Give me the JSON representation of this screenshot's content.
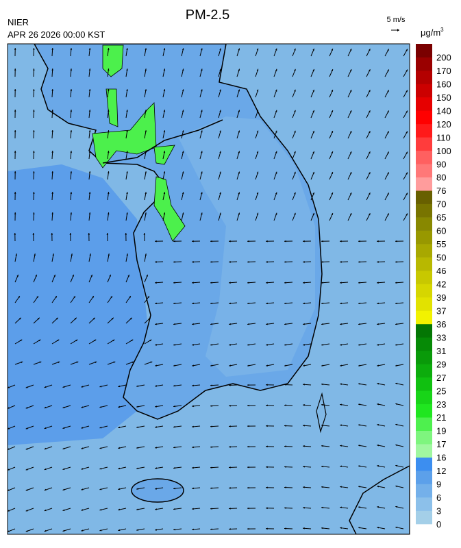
{
  "header": {
    "title": "PM-2.5",
    "agency": "NIER",
    "timestamp": "APR 26 2026 00:00 KST",
    "wind_scale": "5 m/s"
  },
  "legend": {
    "unit": "μg/m",
    "unit_sup": "3",
    "levels": [
      0,
      3,
      6,
      9,
      12,
      16,
      17,
      19,
      21,
      23,
      25,
      27,
      29,
      31,
      33,
      36,
      37,
      39,
      42,
      46,
      50,
      55,
      60,
      65,
      70,
      76,
      80,
      90,
      100,
      110,
      120,
      140,
      150,
      160,
      170,
      200
    ],
    "colors": [
      "#a4cfe8",
      "#8cc0ea",
      "#74b0ea",
      "#5ca0ea",
      "#3c8ef0",
      "#a0f7a0",
      "#7ef57e",
      "#4ef04e",
      "#20e620",
      "#18d418",
      "#10c010",
      "#0cac0c",
      "#099a09",
      "#068a06",
      "#047604",
      "#f2f200",
      "#e2e200",
      "#d6d600",
      "#c8c800",
      "#b8b800",
      "#a8a800",
      "#989800",
      "#888800",
      "#787400",
      "#686000",
      "#ff9c9c",
      "#ff7878",
      "#ff6060",
      "#ff3c3c",
      "#ff1a1a",
      "#ff0000",
      "#e60000",
      "#cc0000",
      "#b40000",
      "#9a0000",
      "#7a0000"
    ]
  }
}
